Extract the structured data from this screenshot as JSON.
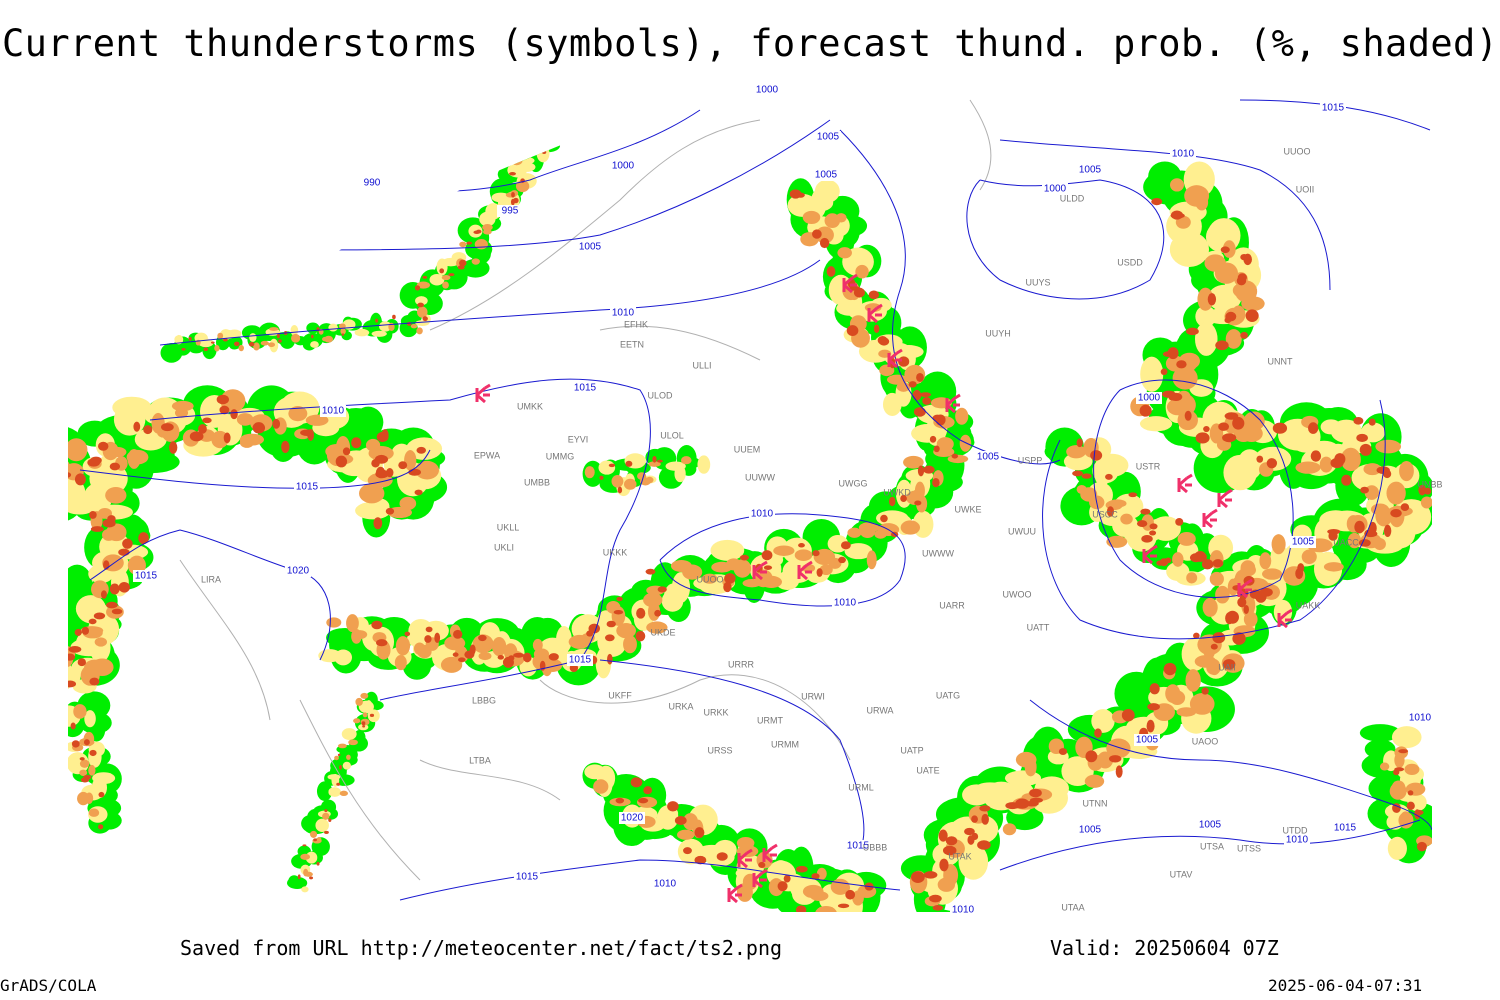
{
  "header": {
    "title": "Current thunderstorms (symbols), forecast thund. prob. (%, shaded)"
  },
  "isobar_labels": [
    "990",
    "995",
    "1000",
    "1005",
    "1005",
    "1005",
    "1010",
    "1015",
    "1010",
    "1015",
    "1015",
    "1020",
    "1010",
    "1010",
    "1015",
    "1020",
    "1015",
    "1010",
    "1015",
    "1010",
    "1015",
    "1010",
    "1005",
    "1000",
    "1005",
    "1000",
    "1005",
    "1005",
    "1005",
    "1005",
    "1010",
    "1015",
    "1010",
    "1000"
  ],
  "station_labels": [
    "EFHK",
    "EETN",
    "ULLI",
    "ULOD",
    "ULOL",
    "UMKK",
    "EYVI",
    "UMMG",
    "EPWA",
    "UMBB",
    "UUEM",
    "UUWW",
    "UWGG",
    "UWKD",
    "UWKE",
    "UWUU",
    "USPP",
    "UUYH",
    "UUYS",
    "USDD",
    "ULDD",
    "UUOO",
    "UOII",
    "USTR",
    "UNNT",
    "UNBB",
    "UACC",
    "UAKK",
    "UAOO",
    "UATT",
    "UWOO",
    "UWWW",
    "UARR",
    "UATG",
    "URWA",
    "URWI",
    "URRR",
    "UKDE",
    "UKFF",
    "URKA",
    "URKK",
    "URMT",
    "URMM",
    "URSS",
    "UATP",
    "UATE",
    "URML",
    "UBBB",
    "UTAK",
    "UTNN",
    "UTSS",
    "UTSA",
    "UTAV",
    "UTAA",
    "LTBA",
    "LBBG",
    "LIRA",
    "UKLL",
    "UKLI",
    "UKKK",
    "UUOO",
    "USCC",
    "UTDD",
    "UAII"
  ],
  "footer": {
    "source": "Saved from URL http://meteocenter.net/fact/ts2.png",
    "valid": "Valid: 20250604 07Z",
    "software": "GrADS/COLA",
    "timestamp": "2025-06-04-07:31"
  }
}
